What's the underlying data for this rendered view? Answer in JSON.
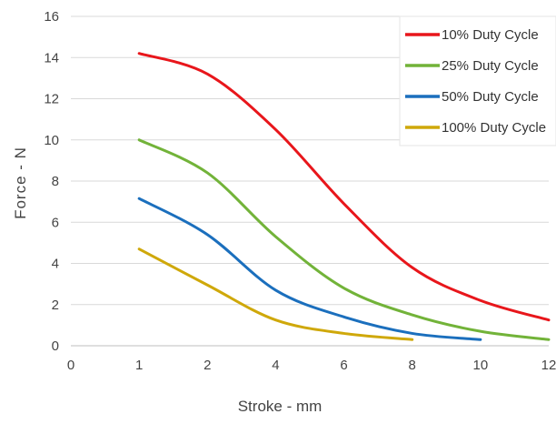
{
  "chart_data": {
    "type": "line",
    "title": "",
    "xlabel": "Stroke - mm",
    "ylabel": "Force - N",
    "xlim": [
      0,
      12
    ],
    "ylim": [
      0,
      16
    ],
    "x_ticks": [
      0,
      1,
      2,
      4,
      6,
      8,
      10,
      12
    ],
    "x_tick_labels": [
      "0",
      "1",
      "2",
      "4",
      "6",
      "8",
      "10",
      "12"
    ],
    "y_ticks": [
      0,
      2,
      4,
      6,
      8,
      10,
      12,
      14,
      16
    ],
    "y_tick_labels": [
      "0",
      "2",
      "4",
      "6",
      "8",
      "10",
      "12",
      "14",
      "16"
    ],
    "x_categories": [
      0,
      1,
      2,
      4,
      6,
      8,
      10,
      12
    ],
    "grid": "horizontal",
    "legend_position": "top-right",
    "series": [
      {
        "name": "10% Duty Cycle",
        "color": "#e8161b",
        "x": [
          1,
          2,
          4,
          6,
          8,
          10,
          12
        ],
        "y": [
          14.2,
          13.2,
          10.5,
          6.9,
          3.8,
          2.2,
          1.25
        ]
      },
      {
        "name": "25% Duty Cycle",
        "color": "#72b339",
        "x": [
          1,
          2,
          4,
          6,
          8,
          10,
          12
        ],
        "y": [
          10.0,
          8.4,
          5.3,
          2.8,
          1.5,
          0.7,
          0.3
        ]
      },
      {
        "name": "50% Duty Cycle",
        "color": "#1b6fbd",
        "x": [
          1,
          2,
          4,
          6,
          8,
          10
        ],
        "y": [
          7.15,
          5.4,
          2.7,
          1.4,
          0.6,
          0.3
        ]
      },
      {
        "name": "100% Duty Cycle",
        "color": "#cfa80a",
        "x": [
          1,
          2,
          4,
          6,
          8
        ],
        "y": [
          4.7,
          2.95,
          1.25,
          0.6,
          0.3
        ]
      }
    ]
  }
}
